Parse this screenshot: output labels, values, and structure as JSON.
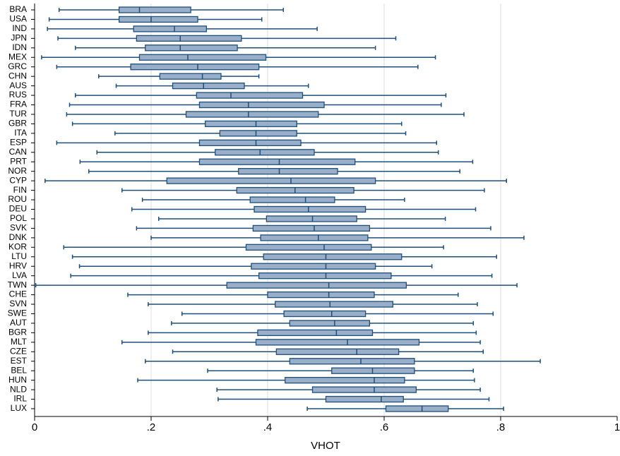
{
  "chart_data": {
    "type": "boxplot",
    "orientation": "horizontal",
    "x_label": "VHOT",
    "categories": [
      "BRA",
      "USA",
      "IND",
      "JPN",
      "IDN",
      "MEX",
      "GRC",
      "CHN",
      "AUS",
      "RUS",
      "FRA",
      "TUR",
      "GBR",
      "ITA",
      "ESP",
      "CAN",
      "PRT",
      "NOR",
      "CYP",
      "FIN",
      "ROU",
      "DEU",
      "POL",
      "SVK",
      "DNK",
      "KOR",
      "LTU",
      "HRV",
      "LVA",
      "TWN",
      "CHE",
      "SVN",
      "SWE",
      "AUT",
      "BGR",
      "MLT",
      "CZE",
      "EST",
      "BEL",
      "HUN",
      "NLD",
      "IRL",
      "LUX"
    ],
    "low": [
      0.042,
      0.025,
      0.022,
      0.04,
      0.07,
      0.012,
      0.038,
      0.11,
      0.14,
      0.07,
      0.06,
      0.055,
      0.065,
      0.138,
      0.038,
      0.107,
      0.078,
      0.093,
      0.018,
      0.15,
      0.185,
      0.167,
      0.213,
      0.175,
      0.2,
      0.05,
      0.065,
      0.077,
      0.062,
      0.002,
      0.16,
      0.195,
      0.253,
      0.235,
      0.195,
      0.15,
      0.237,
      0.19,
      0.297,
      0.177,
      0.313,
      0.315,
      0.468
    ],
    "q1": [
      0.145,
      0.145,
      0.17,
      0.175,
      0.19,
      0.18,
      0.165,
      0.215,
      0.237,
      0.278,
      0.283,
      0.26,
      0.293,
      0.318,
      0.283,
      0.31,
      0.283,
      0.35,
      0.227,
      0.347,
      0.37,
      0.377,
      0.398,
      0.375,
      0.388,
      0.363,
      0.393,
      0.372,
      0.385,
      0.33,
      0.4,
      0.413,
      0.428,
      0.438,
      0.383,
      0.38,
      0.415,
      0.438,
      0.51,
      0.43,
      0.477,
      0.5,
      0.603
    ],
    "median": [
      0.18,
      0.2,
      0.24,
      0.25,
      0.25,
      0.263,
      0.28,
      0.288,
      0.29,
      0.337,
      0.367,
      0.367,
      0.38,
      0.38,
      0.38,
      0.387,
      0.42,
      0.42,
      0.44,
      0.447,
      0.465,
      0.47,
      0.477,
      0.48,
      0.487,
      0.497,
      0.5,
      0.5,
      0.5,
      0.505,
      0.505,
      0.507,
      0.51,
      0.515,
      0.518,
      0.537,
      0.553,
      0.56,
      0.58,
      0.583,
      0.583,
      0.595,
      0.665
    ],
    "q3": [
      0.268,
      0.28,
      0.295,
      0.355,
      0.348,
      0.397,
      0.385,
      0.32,
      0.36,
      0.46,
      0.497,
      0.487,
      0.45,
      0.45,
      0.457,
      0.48,
      0.55,
      0.52,
      0.585,
      0.548,
      0.515,
      0.568,
      0.553,
      0.575,
      0.572,
      0.578,
      0.63,
      0.585,
      0.612,
      0.638,
      0.583,
      0.615,
      0.568,
      0.575,
      0.58,
      0.66,
      0.625,
      0.652,
      0.652,
      0.635,
      0.655,
      0.633,
      0.71
    ],
    "high": [
      0.427,
      0.39,
      0.485,
      0.62,
      0.585,
      0.688,
      0.658,
      0.385,
      0.47,
      0.706,
      0.698,
      0.737,
      0.63,
      0.637,
      0.69,
      0.693,
      0.752,
      0.73,
      0.81,
      0.772,
      0.635,
      0.757,
      0.705,
      0.783,
      0.84,
      0.702,
      0.793,
      0.682,
      0.785,
      0.828,
      0.727,
      0.76,
      0.787,
      0.753,
      0.758,
      0.765,
      0.77,
      0.868,
      0.753,
      0.755,
      0.765,
      0.78,
      0.805
    ],
    "box_color": "#99afc9",
    "line_color": "#1f4e79",
    "xlim": [
      0,
      1
    ],
    "xticks": [
      0,
      {
        "value": 0.2,
        "label": ".2"
      },
      {
        "value": 0.4,
        "label": ".4"
      },
      {
        "value": 0.6,
        "label": ".6"
      },
      {
        "value": 0.8,
        "label": ".8"
      },
      1
    ],
    "grid": true
  }
}
